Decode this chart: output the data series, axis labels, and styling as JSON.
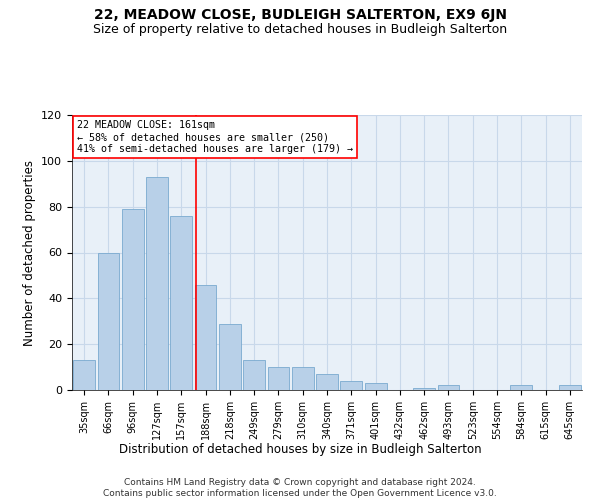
{
  "title1": "22, MEADOW CLOSE, BUDLEIGH SALTERTON, EX9 6JN",
  "title2": "Size of property relative to detached houses in Budleigh Salterton",
  "xlabel": "Distribution of detached houses by size in Budleigh Salterton",
  "ylabel": "Number of detached properties",
  "footnote": "Contains HM Land Registry data © Crown copyright and database right 2024.\nContains public sector information licensed under the Open Government Licence v3.0.",
  "categories": [
    "35sqm",
    "66sqm",
    "96sqm",
    "127sqm",
    "157sqm",
    "188sqm",
    "218sqm",
    "249sqm",
    "279sqm",
    "310sqm",
    "340sqm",
    "371sqm",
    "401sqm",
    "432sqm",
    "462sqm",
    "493sqm",
    "523sqm",
    "554sqm",
    "584sqm",
    "615sqm",
    "645sqm"
  ],
  "values": [
    13,
    60,
    79,
    93,
    76,
    46,
    29,
    13,
    10,
    10,
    7,
    4,
    3,
    0,
    1,
    2,
    0,
    0,
    2,
    0,
    2
  ],
  "bar_color": "#b8d0e8",
  "bar_edge_color": "#7aaacf",
  "vline_x": 4.62,
  "vline_color": "red",
  "annotation_text": "22 MEADOW CLOSE: 161sqm\n← 58% of detached houses are smaller (250)\n41% of semi-detached houses are larger (179) →",
  "annotation_box_color": "white",
  "annotation_box_edge": "red",
  "ylim": [
    0,
    120
  ],
  "yticks": [
    0,
    20,
    40,
    60,
    80,
    100,
    120
  ],
  "grid_color": "#c8d8ea",
  "background_color": "#e8f0f8",
  "title1_fontsize": 10,
  "title2_fontsize": 9,
  "xlabel_fontsize": 8.5,
  "ylabel_fontsize": 8.5,
  "footnote_fontsize": 6.5
}
